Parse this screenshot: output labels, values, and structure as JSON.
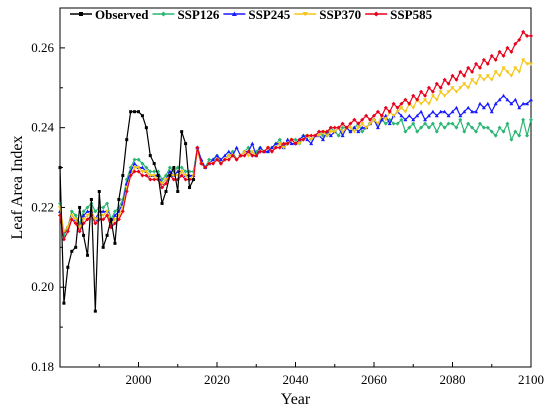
{
  "chart_data": {
    "type": "line",
    "title": "",
    "xlabel": "Year",
    "ylabel": "Leaf Area Index",
    "xlim": [
      1980,
      2100
    ],
    "ylim": [
      0.18,
      0.27
    ],
    "xticks": [
      2000,
      2020,
      2040,
      2060,
      2080,
      2100
    ],
    "yticks": [
      0.18,
      0.2,
      0.22,
      0.24,
      0.26
    ],
    "xtick_labels": [
      "2000",
      "2020",
      "2040",
      "2060",
      "2080",
      "2100"
    ],
    "ytick_labels": [
      "0.18",
      "0.20",
      "0.22",
      "0.24",
      "0.26"
    ],
    "grid": false,
    "legend_position": "top",
    "series": [
      {
        "name": "Observed",
        "color": "#000000",
        "marker": "square",
        "x": [
          1980,
          1981,
          1982,
          1983,
          1984,
          1985,
          1986,
          1987,
          1988,
          1989,
          1990,
          1991,
          1992,
          1993,
          1994,
          1995,
          1996,
          1997,
          1998,
          1999,
          2000,
          2001,
          2002,
          2003,
          2004,
          2005,
          2006,
          2007,
          2008,
          2009,
          2010,
          2011,
          2012,
          2013,
          2014
        ],
        "values": [
          0.23,
          0.196,
          0.205,
          0.209,
          0.21,
          0.22,
          0.213,
          0.208,
          0.222,
          0.194,
          0.224,
          0.21,
          0.213,
          0.217,
          0.211,
          0.222,
          0.228,
          0.237,
          0.244,
          0.244,
          0.244,
          0.243,
          0.24,
          0.233,
          0.231,
          0.228,
          0.221,
          0.224,
          0.228,
          0.23,
          0.224,
          0.239,
          0.236,
          0.225,
          0.227
        ]
      },
      {
        "name": "SSP126",
        "color": "#2bb673",
        "marker": "diamond",
        "x": [
          1980,
          1981,
          1982,
          1983,
          1984,
          1985,
          1986,
          1987,
          1988,
          1989,
          1990,
          1991,
          1992,
          1993,
          1994,
          1995,
          1996,
          1997,
          1998,
          1999,
          2000,
          2001,
          2002,
          2003,
          2004,
          2005,
          2006,
          2007,
          2008,
          2009,
          2010,
          2011,
          2012,
          2013,
          2014,
          2015,
          2016,
          2017,
          2018,
          2019,
          2020,
          2021,
          2022,
          2023,
          2024,
          2025,
          2026,
          2027,
          2028,
          2029,
          2030,
          2031,
          2032,
          2033,
          2034,
          2035,
          2036,
          2037,
          2038,
          2039,
          2040,
          2041,
          2042,
          2043,
          2044,
          2045,
          2046,
          2047,
          2048,
          2049,
          2050,
          2051,
          2052,
          2053,
          2054,
          2055,
          2056,
          2057,
          2058,
          2059,
          2060,
          2061,
          2062,
          2063,
          2064,
          2065,
          2066,
          2067,
          2068,
          2069,
          2070,
          2071,
          2072,
          2073,
          2074,
          2075,
          2076,
          2077,
          2078,
          2079,
          2080,
          2081,
          2082,
          2083,
          2084,
          2085,
          2086,
          2087,
          2088,
          2089,
          2090,
          2091,
          2092,
          2093,
          2094,
          2095,
          2096,
          2097,
          2098,
          2099,
          2100
        ],
        "values": [
          0.221,
          0.213,
          0.215,
          0.219,
          0.218,
          0.216,
          0.219,
          0.22,
          0.221,
          0.219,
          0.22,
          0.22,
          0.221,
          0.217,
          0.219,
          0.22,
          0.222,
          0.227,
          0.23,
          0.232,
          0.232,
          0.231,
          0.23,
          0.229,
          0.229,
          0.229,
          0.227,
          0.228,
          0.23,
          0.229,
          0.23,
          0.23,
          0.229,
          0.229,
          0.229,
          0.235,
          0.231,
          0.23,
          0.232,
          0.232,
          0.233,
          0.231,
          0.232,
          0.233,
          0.234,
          0.232,
          0.233,
          0.234,
          0.235,
          0.233,
          0.234,
          0.235,
          0.234,
          0.234,
          0.235,
          0.236,
          0.237,
          0.235,
          0.236,
          0.237,
          0.237,
          0.236,
          0.238,
          0.238,
          0.237,
          0.238,
          0.239,
          0.238,
          0.238,
          0.24,
          0.239,
          0.238,
          0.24,
          0.24,
          0.239,
          0.24,
          0.241,
          0.239,
          0.24,
          0.241,
          0.242,
          0.241,
          0.242,
          0.241,
          0.242,
          0.241,
          0.241,
          0.242,
          0.239,
          0.24,
          0.241,
          0.239,
          0.24,
          0.241,
          0.24,
          0.241,
          0.239,
          0.241,
          0.24,
          0.241,
          0.241,
          0.24,
          0.242,
          0.239,
          0.241,
          0.24,
          0.239,
          0.241,
          0.24,
          0.24,
          0.239,
          0.238,
          0.24,
          0.239,
          0.241,
          0.237,
          0.239,
          0.238,
          0.242,
          0.238,
          0.242
        ]
      },
      {
        "name": "SSP245",
        "color": "#1a1aff",
        "marker": "triangle",
        "x": [
          1980,
          1981,
          1982,
          1983,
          1984,
          1985,
          1986,
          1987,
          1988,
          1989,
          1990,
          1991,
          1992,
          1993,
          1994,
          1995,
          1996,
          1997,
          1998,
          1999,
          2000,
          2001,
          2002,
          2003,
          2004,
          2005,
          2006,
          2007,
          2008,
          2009,
          2010,
          2011,
          2012,
          2013,
          2014,
          2015,
          2016,
          2017,
          2018,
          2019,
          2020,
          2021,
          2022,
          2023,
          2024,
          2025,
          2026,
          2027,
          2028,
          2029,
          2030,
          2031,
          2032,
          2033,
          2034,
          2035,
          2036,
          2037,
          2038,
          2039,
          2040,
          2041,
          2042,
          2043,
          2044,
          2045,
          2046,
          2047,
          2048,
          2049,
          2050,
          2051,
          2052,
          2053,
          2054,
          2055,
          2056,
          2057,
          2058,
          2059,
          2060,
          2061,
          2062,
          2063,
          2064,
          2065,
          2066,
          2067,
          2068,
          2069,
          2070,
          2071,
          2072,
          2073,
          2074,
          2075,
          2076,
          2077,
          2078,
          2079,
          2080,
          2081,
          2082,
          2083,
          2084,
          2085,
          2086,
          2087,
          2088,
          2089,
          2090,
          2091,
          2092,
          2093,
          2094,
          2095,
          2096,
          2097,
          2098,
          2099,
          2100
        ],
        "values": [
          0.219,
          0.214,
          0.215,
          0.218,
          0.217,
          0.215,
          0.218,
          0.219,
          0.219,
          0.217,
          0.219,
          0.219,
          0.219,
          0.216,
          0.218,
          0.219,
          0.221,
          0.226,
          0.229,
          0.231,
          0.23,
          0.23,
          0.229,
          0.228,
          0.228,
          0.228,
          0.226,
          0.227,
          0.229,
          0.228,
          0.229,
          0.229,
          0.228,
          0.228,
          0.228,
          0.235,
          0.232,
          0.23,
          0.231,
          0.232,
          0.233,
          0.232,
          0.233,
          0.234,
          0.233,
          0.235,
          0.233,
          0.234,
          0.234,
          0.236,
          0.233,
          0.235,
          0.234,
          0.234,
          0.235,
          0.236,
          0.236,
          0.235,
          0.237,
          0.236,
          0.236,
          0.237,
          0.238,
          0.237,
          0.236,
          0.238,
          0.238,
          0.237,
          0.239,
          0.238,
          0.239,
          0.24,
          0.238,
          0.24,
          0.239,
          0.24,
          0.239,
          0.24,
          0.24,
          0.241,
          0.242,
          0.24,
          0.242,
          0.243,
          0.241,
          0.243,
          0.244,
          0.243,
          0.242,
          0.243,
          0.242,
          0.243,
          0.244,
          0.242,
          0.243,
          0.244,
          0.243,
          0.244,
          0.244,
          0.243,
          0.244,
          0.245,
          0.243,
          0.244,
          0.245,
          0.244,
          0.244,
          0.246,
          0.245,
          0.246,
          0.244,
          0.246,
          0.247,
          0.248,
          0.247,
          0.246,
          0.247,
          0.245,
          0.246,
          0.246,
          0.247
        ]
      },
      {
        "name": "SSP370",
        "color": "#f5c518",
        "marker": "triangle-down",
        "x": [
          1980,
          1981,
          1982,
          1983,
          1984,
          1985,
          1986,
          1987,
          1988,
          1989,
          1990,
          1991,
          1992,
          1993,
          1994,
          1995,
          1996,
          1997,
          1998,
          1999,
          2000,
          2001,
          2002,
          2003,
          2004,
          2005,
          2006,
          2007,
          2008,
          2009,
          2010,
          2011,
          2012,
          2013,
          2014,
          2015,
          2016,
          2017,
          2018,
          2019,
          2020,
          2021,
          2022,
          2023,
          2024,
          2025,
          2026,
          2027,
          2028,
          2029,
          2030,
          2031,
          2032,
          2033,
          2034,
          2035,
          2036,
          2037,
          2038,
          2039,
          2040,
          2041,
          2042,
          2043,
          2044,
          2045,
          2046,
          2047,
          2048,
          2049,
          2050,
          2051,
          2052,
          2053,
          2054,
          2055,
          2056,
          2057,
          2058,
          2059,
          2060,
          2061,
          2062,
          2063,
          2064,
          2065,
          2066,
          2067,
          2068,
          2069,
          2070,
          2071,
          2072,
          2073,
          2074,
          2075,
          2076,
          2077,
          2078,
          2079,
          2080,
          2081,
          2082,
          2083,
          2084,
          2085,
          2086,
          2087,
          2088,
          2089,
          2090,
          2091,
          2092,
          2093,
          2094,
          2095,
          2096,
          2097,
          2098,
          2099,
          2100
        ],
        "values": [
          0.22,
          0.214,
          0.215,
          0.218,
          0.217,
          0.215,
          0.217,
          0.218,
          0.219,
          0.217,
          0.218,
          0.218,
          0.219,
          0.216,
          0.217,
          0.218,
          0.22,
          0.225,
          0.228,
          0.23,
          0.23,
          0.229,
          0.229,
          0.228,
          0.228,
          0.227,
          0.226,
          0.227,
          0.228,
          0.228,
          0.228,
          0.229,
          0.228,
          0.227,
          0.228,
          0.234,
          0.231,
          0.23,
          0.231,
          0.231,
          0.232,
          0.231,
          0.232,
          0.233,
          0.233,
          0.232,
          0.233,
          0.234,
          0.233,
          0.234,
          0.233,
          0.234,
          0.234,
          0.235,
          0.234,
          0.235,
          0.236,
          0.235,
          0.236,
          0.237,
          0.236,
          0.236,
          0.237,
          0.238,
          0.237,
          0.238,
          0.238,
          0.239,
          0.238,
          0.239,
          0.239,
          0.24,
          0.239,
          0.24,
          0.24,
          0.239,
          0.24,
          0.241,
          0.24,
          0.241,
          0.242,
          0.241,
          0.243,
          0.242,
          0.244,
          0.243,
          0.244,
          0.245,
          0.244,
          0.246,
          0.245,
          0.247,
          0.246,
          0.247,
          0.246,
          0.248,
          0.247,
          0.249,
          0.248,
          0.249,
          0.25,
          0.249,
          0.25,
          0.251,
          0.25,
          0.252,
          0.251,
          0.253,
          0.252,
          0.253,
          0.252,
          0.254,
          0.253,
          0.255,
          0.254,
          0.253,
          0.255,
          0.254,
          0.257,
          0.256,
          0.256
        ]
      },
      {
        "name": "SSP585",
        "color": "#e8001c",
        "marker": "diamond",
        "x": [
          1980,
          1981,
          1982,
          1983,
          1984,
          1985,
          1986,
          1987,
          1988,
          1989,
          1990,
          1991,
          1992,
          1993,
          1994,
          1995,
          1996,
          1997,
          1998,
          1999,
          2000,
          2001,
          2002,
          2003,
          2004,
          2005,
          2006,
          2007,
          2008,
          2009,
          2010,
          2011,
          2012,
          2013,
          2014,
          2015,
          2016,
          2017,
          2018,
          2019,
          2020,
          2021,
          2022,
          2023,
          2024,
          2025,
          2026,
          2027,
          2028,
          2029,
          2030,
          2031,
          2032,
          2033,
          2034,
          2035,
          2036,
          2037,
          2038,
          2039,
          2040,
          2041,
          2042,
          2043,
          2044,
          2045,
          2046,
          2047,
          2048,
          2049,
          2050,
          2051,
          2052,
          2053,
          2054,
          2055,
          2056,
          2057,
          2058,
          2059,
          2060,
          2061,
          2062,
          2063,
          2064,
          2065,
          2066,
          2067,
          2068,
          2069,
          2070,
          2071,
          2072,
          2073,
          2074,
          2075,
          2076,
          2077,
          2078,
          2079,
          2080,
          2081,
          2082,
          2083,
          2084,
          2085,
          2086,
          2087,
          2088,
          2089,
          2090,
          2091,
          2092,
          2093,
          2094,
          2095,
          2096,
          2097,
          2098,
          2099,
          2100
        ],
        "values": [
          0.218,
          0.212,
          0.214,
          0.217,
          0.216,
          0.214,
          0.216,
          0.217,
          0.218,
          0.216,
          0.217,
          0.217,
          0.218,
          0.215,
          0.216,
          0.217,
          0.219,
          0.224,
          0.228,
          0.229,
          0.229,
          0.228,
          0.228,
          0.227,
          0.227,
          0.227,
          0.225,
          0.226,
          0.228,
          0.227,
          0.227,
          0.228,
          0.227,
          0.227,
          0.227,
          0.235,
          0.231,
          0.23,
          0.231,
          0.231,
          0.232,
          0.231,
          0.232,
          0.232,
          0.233,
          0.232,
          0.233,
          0.233,
          0.234,
          0.233,
          0.233,
          0.234,
          0.234,
          0.235,
          0.234,
          0.235,
          0.235,
          0.236,
          0.236,
          0.237,
          0.236,
          0.237,
          0.237,
          0.238,
          0.238,
          0.238,
          0.239,
          0.239,
          0.239,
          0.24,
          0.24,
          0.24,
          0.241,
          0.24,
          0.241,
          0.242,
          0.241,
          0.242,
          0.243,
          0.242,
          0.243,
          0.244,
          0.243,
          0.245,
          0.244,
          0.246,
          0.245,
          0.246,
          0.247,
          0.246,
          0.248,
          0.247,
          0.249,
          0.248,
          0.25,
          0.249,
          0.251,
          0.25,
          0.252,
          0.251,
          0.253,
          0.252,
          0.254,
          0.253,
          0.255,
          0.254,
          0.256,
          0.255,
          0.257,
          0.256,
          0.258,
          0.257,
          0.259,
          0.258,
          0.26,
          0.259,
          0.261,
          0.262,
          0.264,
          0.263,
          0.263
        ]
      }
    ]
  }
}
